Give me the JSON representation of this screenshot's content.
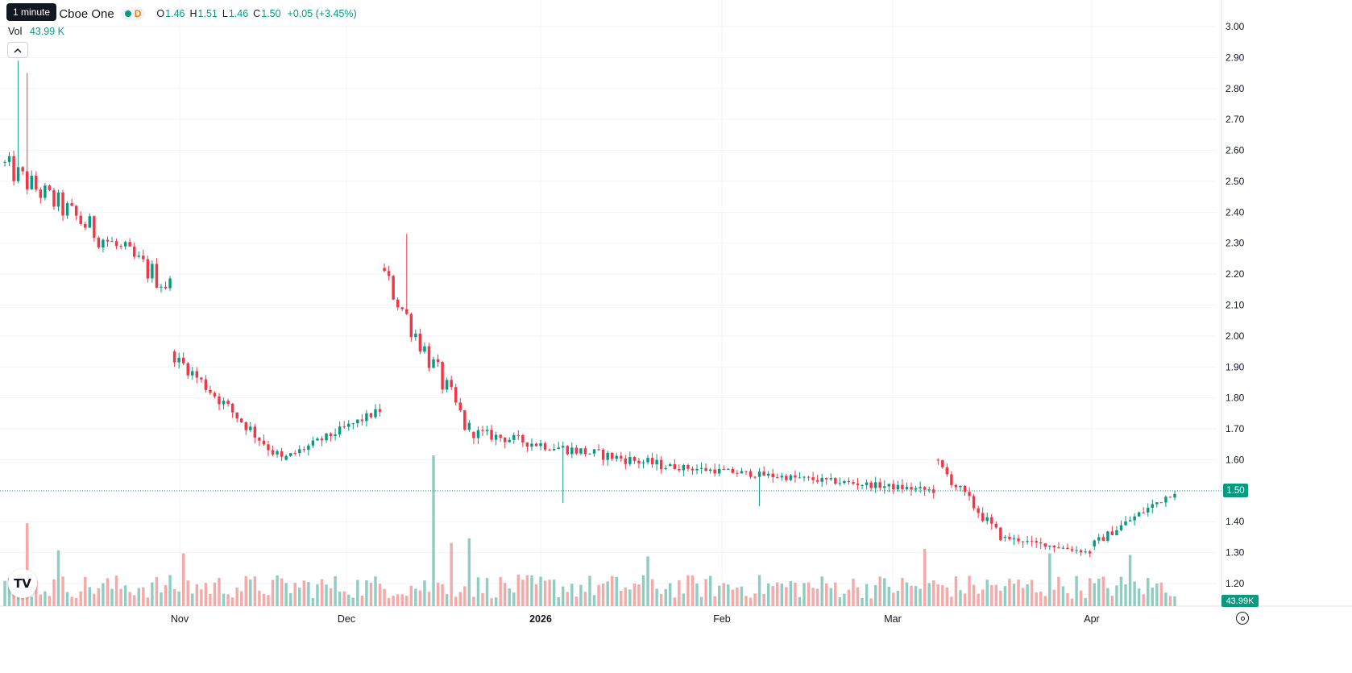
{
  "legend": {
    "title": "nc. · 4h · Cboe One",
    "interval_letter": "D",
    "open_label": "O",
    "open": "1.46",
    "high_label": "H",
    "high": "1.51",
    "low_label": "L",
    "low": "1.46",
    "close_label": "C",
    "close": "1.50",
    "change": "+0.05 (+3.45%)"
  },
  "tooltip": "1 minute",
  "volume_legend": {
    "label": "Vol",
    "value": "43.99 K"
  },
  "collapse_icon": "chevron-up-icon",
  "logo": "TV",
  "last_price_label": "1.50",
  "last_volume_label": "43.99K",
  "colors": {
    "up": "#089981",
    "down": "#f23645",
    "up_vol": "#8fcdc3",
    "down_vol": "#f7a9a7"
  },
  "chart_data": {
    "type": "candlestick",
    "yticks": [
      "3.00",
      "2.90",
      "2.80",
      "2.70",
      "2.60",
      "2.50",
      "2.40",
      "2.30",
      "2.20",
      "2.10",
      "2.00",
      "1.90",
      "1.80",
      "1.70",
      "1.60",
      "1.50",
      "1.40",
      "1.30",
      "1.20"
    ],
    "ylim": [
      1.17,
      3.09
    ],
    "xticks": [
      {
        "label": "Nov",
        "bold": false
      },
      {
        "label": "Dec",
        "bold": false
      },
      {
        "label": "2026",
        "bold": true
      },
      {
        "label": "Feb",
        "bold": false
      },
      {
        "label": "Mar",
        "bold": false
      },
      {
        "label": "Apr",
        "bold": false
      }
    ],
    "segments": [
      {
        "start": 2.56,
        "end": 2.16,
        "min": 2.14,
        "max": 2.85,
        "n": 38,
        "spike_high": 2.89
      },
      {
        "start": 1.95,
        "end": 1.6,
        "min": 1.57,
        "max": 1.93,
        "n": 25
      },
      {
        "start": 1.6,
        "end": 1.76,
        "min": 1.57,
        "max": 1.79,
        "n": 22
      },
      {
        "start": 2.22,
        "end": 1.69,
        "min": 1.64,
        "max": 2.33,
        "n": 20
      },
      {
        "start": 1.69,
        "end": 1.58,
        "min": 1.46,
        "max": 1.75,
        "n": 44
      },
      {
        "start": 1.58,
        "end": 1.5,
        "min": 1.45,
        "max": 1.62,
        "n": 60
      },
      {
        "start": 1.6,
        "end": 1.35,
        "min": 1.34,
        "max": 1.65,
        "n": 15
      },
      {
        "start": 1.35,
        "end": 1.3,
        "min": 1.28,
        "max": 1.38,
        "n": 20
      },
      {
        "start": 1.32,
        "end": 1.5,
        "min": 1.3,
        "max": 1.51,
        "n": 19
      }
    ],
    "volume_spikes": [
      {
        "index": 5,
        "value": 0.55
      },
      {
        "index": 12,
        "value": 0.37
      },
      {
        "index": 40,
        "value": 0.35
      },
      {
        "index": 96,
        "value": 1.0
      },
      {
        "index": 100,
        "value": 0.42
      },
      {
        "index": 104,
        "value": 0.45
      },
      {
        "index": 144,
        "value": 0.33
      },
      {
        "index": 206,
        "value": 0.38
      },
      {
        "index": 234,
        "value": 0.35
      },
      {
        "index": 252,
        "value": 0.34
      }
    ]
  }
}
